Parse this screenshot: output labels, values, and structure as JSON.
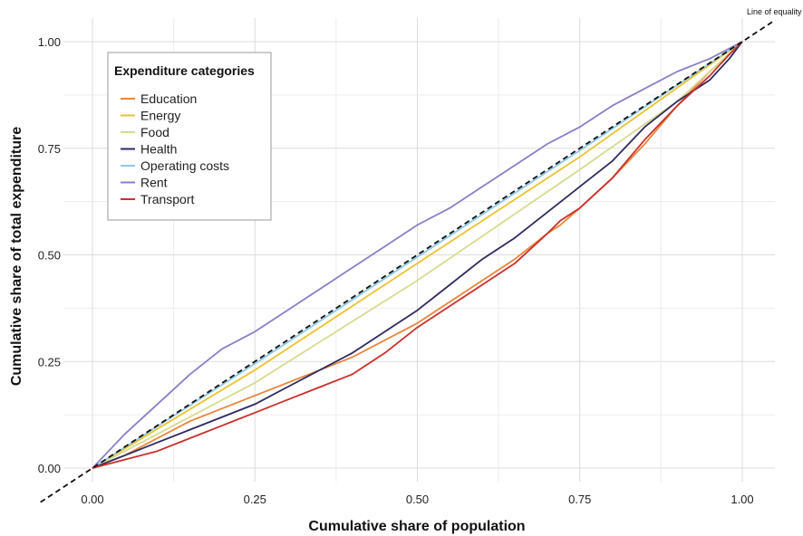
{
  "chart_data": {
    "type": "line",
    "xlabel": "Cumulative share of population",
    "ylabel": "Cumulative share of total expenditure",
    "xlim": [
      0,
      1
    ],
    "ylim": [
      0,
      1
    ],
    "x_ticks": [
      "0.00",
      "0.25",
      "0.50",
      "0.75",
      "1.00"
    ],
    "y_ticks": [
      "0.00",
      "0.25",
      "0.50",
      "0.75",
      "1.00"
    ],
    "grid": true,
    "legend": {
      "title": "Expenditure categories",
      "position": "top-left"
    },
    "reference_line": {
      "label": "Line of equality",
      "x": [
        0,
        1
      ],
      "y": [
        0,
        1
      ],
      "color": "#111111",
      "style": "dashed"
    },
    "series": [
      {
        "name": "Education",
        "color": "#E8853A",
        "x": [
          0,
          0.05,
          0.1,
          0.15,
          0.2,
          0.25,
          0.3,
          0.35,
          0.4,
          0.45,
          0.5,
          0.55,
          0.6,
          0.65,
          0.7,
          0.72,
          0.75,
          0.8,
          0.85,
          0.9,
          0.95,
          0.98,
          1.0
        ],
        "y": [
          0,
          0.03,
          0.07,
          0.11,
          0.14,
          0.17,
          0.2,
          0.23,
          0.26,
          0.3,
          0.34,
          0.39,
          0.44,
          0.49,
          0.55,
          0.57,
          0.61,
          0.68,
          0.76,
          0.85,
          0.93,
          0.97,
          1.0
        ]
      },
      {
        "name": "Energy",
        "color": "#EBC230",
        "x": [
          0,
          0.25,
          0.5,
          0.75,
          1.0
        ],
        "y": [
          0,
          0.23,
          0.48,
          0.73,
          1.0
        ]
      },
      {
        "name": "Food",
        "color": "#D8DA8E",
        "x": [
          0,
          0.25,
          0.5,
          0.75,
          0.9,
          1.0
        ],
        "y": [
          0,
          0.2,
          0.44,
          0.7,
          0.86,
          1.0
        ]
      },
      {
        "name": "Health",
        "color": "#2E2A5E",
        "x": [
          0,
          0.05,
          0.1,
          0.15,
          0.2,
          0.25,
          0.3,
          0.35,
          0.4,
          0.45,
          0.5,
          0.55,
          0.6,
          0.65,
          0.7,
          0.75,
          0.8,
          0.85,
          0.9,
          0.95,
          0.98,
          1.0
        ],
        "y": [
          0,
          0.03,
          0.06,
          0.09,
          0.12,
          0.15,
          0.19,
          0.23,
          0.27,
          0.32,
          0.37,
          0.43,
          0.49,
          0.54,
          0.6,
          0.66,
          0.72,
          0.8,
          0.86,
          0.91,
          0.96,
          1.0
        ]
      },
      {
        "name": "Operating costs",
        "color": "#8EC9E2",
        "x": [
          0,
          0.25,
          0.5,
          0.75,
          1.0
        ],
        "y": [
          0,
          0.245,
          0.495,
          0.745,
          1.0
        ]
      },
      {
        "name": "Rent",
        "color": "#8B7EC8",
        "x": [
          0,
          0.05,
          0.1,
          0.15,
          0.2,
          0.25,
          0.3,
          0.35,
          0.4,
          0.45,
          0.5,
          0.55,
          0.6,
          0.65,
          0.7,
          0.75,
          0.8,
          0.85,
          0.9,
          0.95,
          1.0
        ],
        "y": [
          0,
          0.08,
          0.15,
          0.22,
          0.28,
          0.32,
          0.37,
          0.42,
          0.47,
          0.52,
          0.57,
          0.61,
          0.66,
          0.71,
          0.76,
          0.8,
          0.85,
          0.89,
          0.93,
          0.96,
          1.0
        ]
      },
      {
        "name": "Transport",
        "color": "#C8312A",
        "x": [
          0,
          0.05,
          0.1,
          0.15,
          0.2,
          0.25,
          0.3,
          0.35,
          0.4,
          0.45,
          0.5,
          0.55,
          0.6,
          0.65,
          0.7,
          0.72,
          0.75,
          0.8,
          0.85,
          0.9,
          0.95,
          0.98,
          1.0
        ],
        "y": [
          0,
          0.02,
          0.04,
          0.07,
          0.1,
          0.13,
          0.16,
          0.19,
          0.22,
          0.27,
          0.33,
          0.38,
          0.43,
          0.48,
          0.55,
          0.58,
          0.61,
          0.68,
          0.77,
          0.85,
          0.92,
          0.97,
          1.0
        ]
      }
    ]
  }
}
